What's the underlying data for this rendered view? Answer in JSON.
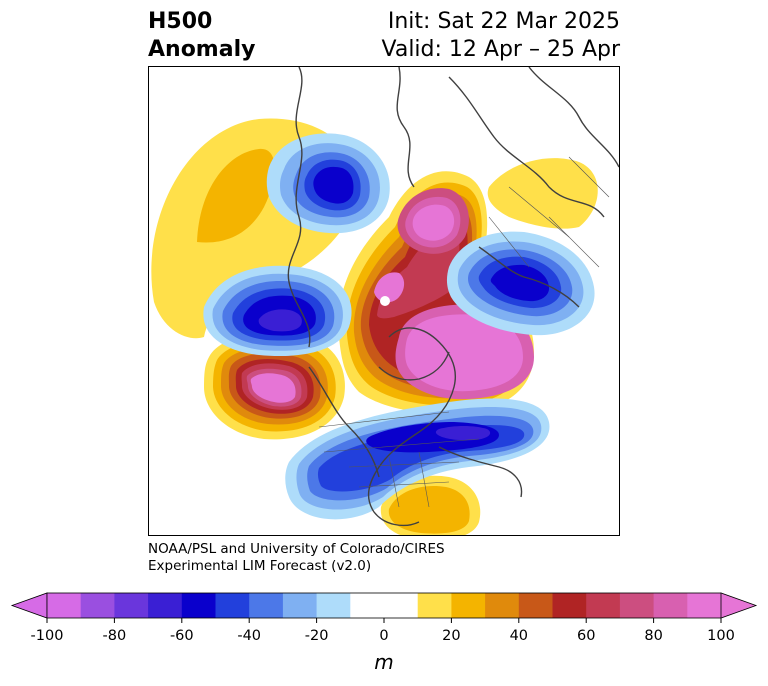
{
  "header": {
    "title_line1": "H500",
    "title_line2": "Anomaly",
    "init": "Init: Sat 22 Mar 2025",
    "valid": "Valid: 12 Apr – 25 Apr"
  },
  "credit": {
    "line1": "NOAA/PSL and University of Colorado/CIRES",
    "line2": "Experimental LIM Forecast (v2.0)"
  },
  "colorbar": {
    "unit": "m",
    "levels": [
      -100,
      -90,
      -80,
      -70,
      -60,
      -50,
      -40,
      -30,
      -20,
      -10,
      10,
      20,
      30,
      40,
      50,
      60,
      70,
      80,
      90,
      100
    ],
    "tick_values": [
      -100,
      -80,
      -60,
      -40,
      -20,
      0,
      20,
      40,
      60,
      80,
      100
    ],
    "colors": [
      "#d66be6",
      "#9a4fe0",
      "#6a36dc",
      "#3a1fd4",
      "#0a00cc",
      "#2240dc",
      "#4c78e8",
      "#7fb0f2",
      "#aedcfa",
      "#ffffff",
      "#ffe04a",
      "#f4b400",
      "#e08a0c",
      "#c85818",
      "#b02424",
      "#c23a52",
      "#cc4e80",
      "#d860b0",
      "#e675d6"
    ],
    "low_extend_color": "#d66be6",
    "high_extend_color": "#e675d6"
  },
  "map": {
    "projection": "north-polar-stereographic",
    "land_outline_color": "#404040"
  }
}
